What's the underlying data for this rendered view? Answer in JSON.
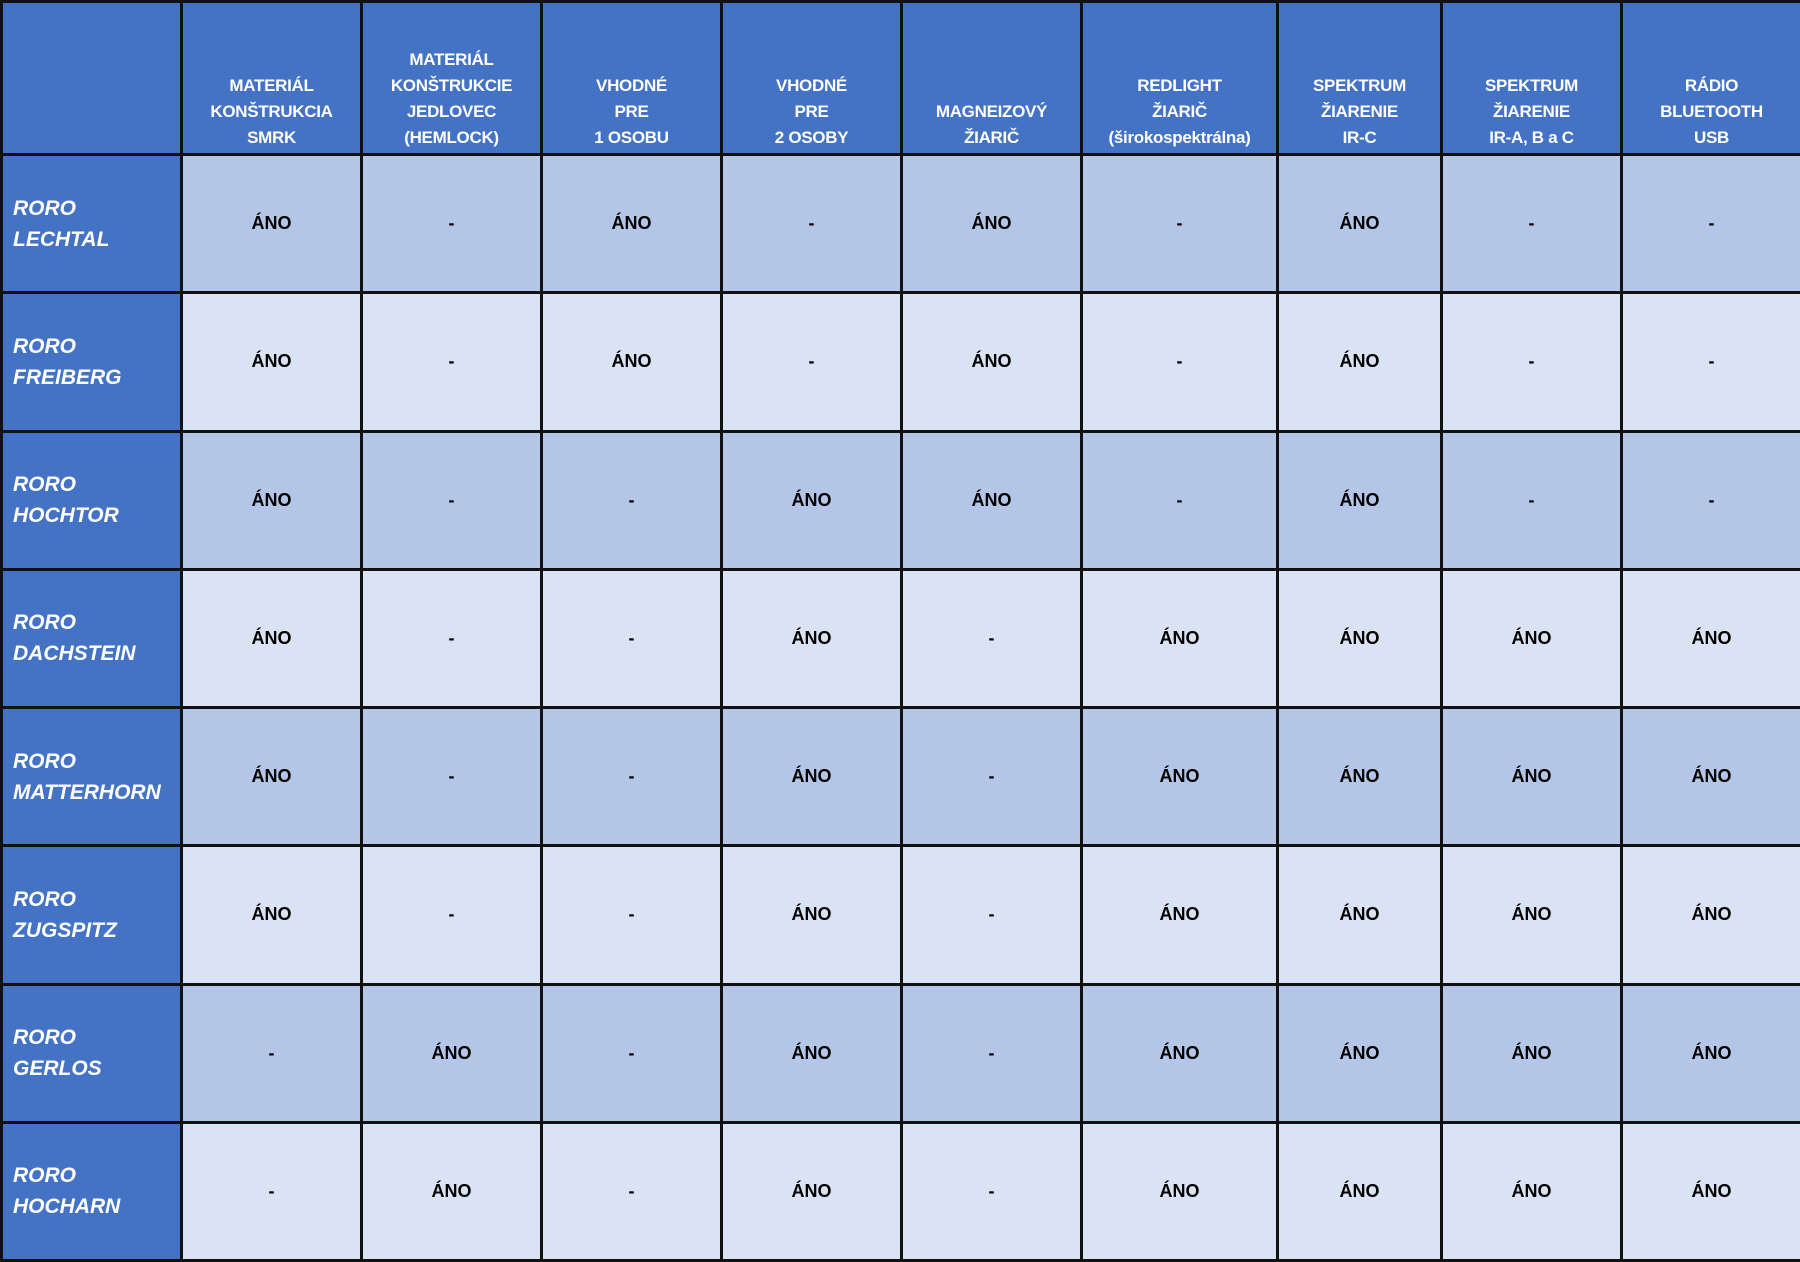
{
  "colors": {
    "header": "#4472C4",
    "row_odd": "#B4C6E7",
    "row_even": "#DAE3F3",
    "border": "#111111"
  },
  "columns": [
    [
      "MATERIÁL",
      "KONŠTRUKCIA",
      "SMRK"
    ],
    [
      "MATERIÁL",
      "KONŠTRUKCIE",
      "JEDLOVEC",
      "(HEMLOCK)"
    ],
    [
      "VHODNÉ",
      "PRE",
      "1 OSOBU"
    ],
    [
      "VHODNÉ",
      "PRE",
      "2 OSOBY"
    ],
    [
      "MAGNEIZOVÝ",
      "ŽIARIČ"
    ],
    [
      "REDLIGHT",
      "ŽIARIČ",
      "(širokospektrálna)"
    ],
    [
      "SPEKTRUM",
      "ŽIARENIE",
      "IR-C"
    ],
    [
      "SPEKTRUM",
      "ŽIARENIE",
      "IR-A, B a C"
    ],
    [
      "RÁDIO",
      "BLUETOOTH",
      "USB"
    ]
  ],
  "rows": [
    {
      "name": [
        "RORO",
        "LECHTAL"
      ],
      "values": [
        "ÁNO",
        "-",
        "ÁNO",
        "-",
        "ÁNO",
        "-",
        "ÁNO",
        "-",
        "-"
      ]
    },
    {
      "name": [
        "RORO",
        "FREIBERG"
      ],
      "values": [
        "ÁNO",
        "-",
        "ÁNO",
        "-",
        "ÁNO",
        "-",
        "ÁNO",
        "-",
        "-"
      ]
    },
    {
      "name": [
        "RORO",
        "HOCHTOR"
      ],
      "values": [
        "ÁNO",
        "-",
        "-",
        "ÁNO",
        "ÁNO",
        "-",
        "ÁNO",
        "-",
        "-"
      ]
    },
    {
      "name": [
        "RORO",
        "DACHSTEIN"
      ],
      "values": [
        "ÁNO",
        "-",
        "-",
        "ÁNO",
        "-",
        "ÁNO",
        "ÁNO",
        "ÁNO",
        "ÁNO"
      ]
    },
    {
      "name": [
        "RORO",
        "MATTERHORN"
      ],
      "values": [
        "ÁNO",
        "-",
        "-",
        "ÁNO",
        "-",
        "ÁNO",
        "ÁNO",
        "ÁNO",
        "ÁNO"
      ]
    },
    {
      "name": [
        "RORO",
        "ZUGSPITZ"
      ],
      "values": [
        "ÁNO",
        "-",
        "-",
        "ÁNO",
        "-",
        "ÁNO",
        "ÁNO",
        "ÁNO",
        "ÁNO"
      ]
    },
    {
      "name": [
        "RORO",
        "GERLOS"
      ],
      "values": [
        "-",
        "ÁNO",
        "-",
        "ÁNO",
        "-",
        "ÁNO",
        "ÁNO",
        "ÁNO",
        "ÁNO"
      ]
    },
    {
      "name": [
        "RORO",
        "HOCHARN"
      ],
      "values": [
        "-",
        "ÁNO",
        "-",
        "ÁNO",
        "-",
        "ÁNO",
        "ÁNO",
        "ÁNO",
        "ÁNO"
      ]
    }
  ]
}
